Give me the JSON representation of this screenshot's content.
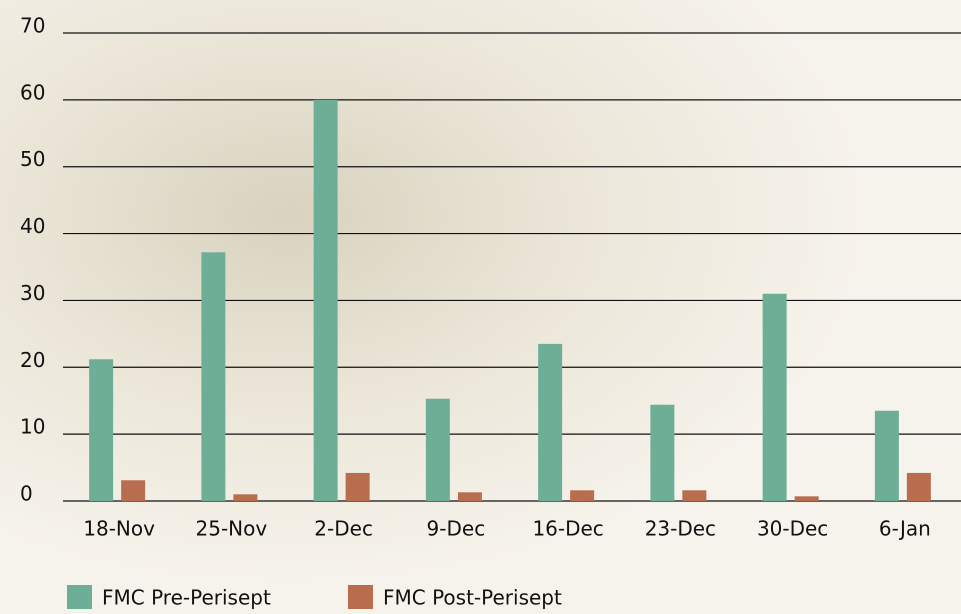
{
  "chart_data": {
    "type": "bar",
    "categories": [
      "18-Nov",
      "25-Nov",
      "2-Dec",
      "9-Dec",
      "16-Dec",
      "23-Dec",
      "30-Dec",
      "6-Jan"
    ],
    "series": [
      {
        "name": "FMC Pre-Perisept",
        "color": "#6fae96",
        "values": [
          21.2,
          37.2,
          60,
          15.3,
          23.5,
          14.4,
          31,
          13.5
        ]
      },
      {
        "name": "FMC Post-Perisept",
        "color": "#b86d4f",
        "values": [
          3.1,
          1,
          4.2,
          1.3,
          1.6,
          1.6,
          0.7,
          4.2
        ]
      }
    ],
    "ylim": [
      0,
      70
    ],
    "yticks": [
      0,
      10,
      20,
      30,
      40,
      50,
      60,
      70
    ],
    "grid": true,
    "legend": "bottom"
  }
}
